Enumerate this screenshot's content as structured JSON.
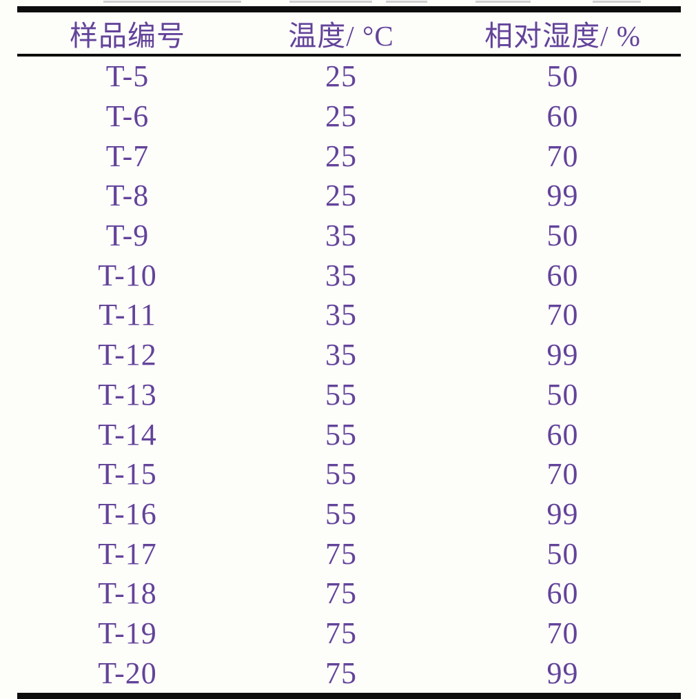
{
  "page": {
    "background": "#fdfdfa"
  },
  "colors": {
    "text_purple": "#63439a",
    "rule_black": "#0d0d0d"
  },
  "table": {
    "columns": [
      {
        "key": "sample_id",
        "label": "样品编号"
      },
      {
        "key": "temperature",
        "label": "温度/ °C"
      },
      {
        "key": "humidity",
        "label": "相对湿度/ %"
      }
    ],
    "rows": [
      {
        "sample_id": "T-5",
        "temperature": "25",
        "humidity": "50"
      },
      {
        "sample_id": "T-6",
        "temperature": "25",
        "humidity": "60"
      },
      {
        "sample_id": "T-7",
        "temperature": "25",
        "humidity": "70"
      },
      {
        "sample_id": "T-8",
        "temperature": "25",
        "humidity": "99"
      },
      {
        "sample_id": "T-9",
        "temperature": "35",
        "humidity": "50"
      },
      {
        "sample_id": "T-10",
        "temperature": "35",
        "humidity": "60"
      },
      {
        "sample_id": "T-11",
        "temperature": "35",
        "humidity": "70"
      },
      {
        "sample_id": "T-12",
        "temperature": "35",
        "humidity": "99"
      },
      {
        "sample_id": "T-13",
        "temperature": "55",
        "humidity": "50"
      },
      {
        "sample_id": "T-14",
        "temperature": "55",
        "humidity": "60"
      },
      {
        "sample_id": "T-15",
        "temperature": "55",
        "humidity": "70"
      },
      {
        "sample_id": "T-16",
        "temperature": "55",
        "humidity": "99"
      },
      {
        "sample_id": "T-17",
        "temperature": "75",
        "humidity": "50"
      },
      {
        "sample_id": "T-18",
        "temperature": "75",
        "humidity": "60"
      },
      {
        "sample_id": "T-19",
        "temperature": "75",
        "humidity": "70"
      },
      {
        "sample_id": "T-20",
        "temperature": "75",
        "humidity": "99"
      }
    ]
  }
}
